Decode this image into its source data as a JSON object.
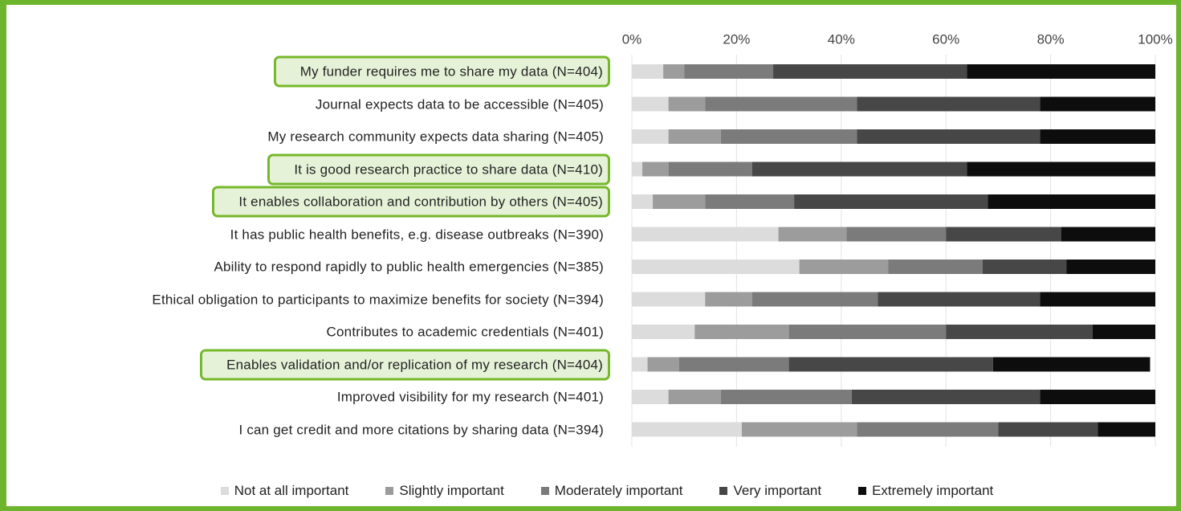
{
  "chart_data": {
    "type": "stacked_barh",
    "categories": [
      "My funder requires me to share my data (N=404)",
      "Journal expects data to be accessible (N=405)",
      "My research community expects data sharing (N=405)",
      "It is good research practice to share data (N=410)",
      "It enables collaboration and contribution by others (N=405)",
      "It has public health benefits, e.g. disease outbreaks (N=390)",
      "Ability to respond rapidly to public health emergencies (N=385)",
      "Ethical obligation to participants to maximize benefits for society (N=394)",
      "Contributes to academic credentials (N=401)",
      "Enables validation and/or replication of my research (N=404)",
      "Improved visibility for my research (N=401)",
      "I can get credit and more citations by sharing data (N=394)"
    ],
    "series": [
      {
        "name": "Not at all important",
        "color": "#dcdcdc",
        "values": [
          6,
          7,
          7,
          2,
          4,
          28,
          32,
          14,
          12,
          3,
          7,
          21
        ]
      },
      {
        "name": "Slightly important",
        "color": "#9c9c9c",
        "values": [
          4,
          7,
          10,
          5,
          10,
          13,
          17,
          9,
          18,
          6,
          10,
          22
        ]
      },
      {
        "name": "Moderately important",
        "color": "#7b7b7b",
        "values": [
          17,
          29,
          26,
          16,
          17,
          19,
          18,
          24,
          30,
          21,
          25,
          27
        ]
      },
      {
        "name": "Very important",
        "color": "#474747",
        "values": [
          37,
          35,
          35,
          41,
          37,
          22,
          16,
          31,
          28,
          39,
          36,
          19
        ]
      },
      {
        "name": "Extremely important",
        "color": "#0d0d0d",
        "values": [
          36,
          22,
          22,
          36,
          32,
          18,
          17,
          22,
          12,
          30,
          22,
          11
        ]
      }
    ],
    "xlim": [
      0,
      100
    ],
    "xticks": [
      {
        "value": 0,
        "label": "0%"
      },
      {
        "value": 20,
        "label": "20%"
      },
      {
        "value": 40,
        "label": "40%"
      },
      {
        "value": 60,
        "label": "60%"
      },
      {
        "value": 80,
        "label": "80%"
      },
      {
        "value": 100,
        "label": "100%"
      }
    ],
    "grid": true,
    "legend": "bottom",
    "highlight_rows": [
      0,
      3,
      4,
      9
    ]
  }
}
